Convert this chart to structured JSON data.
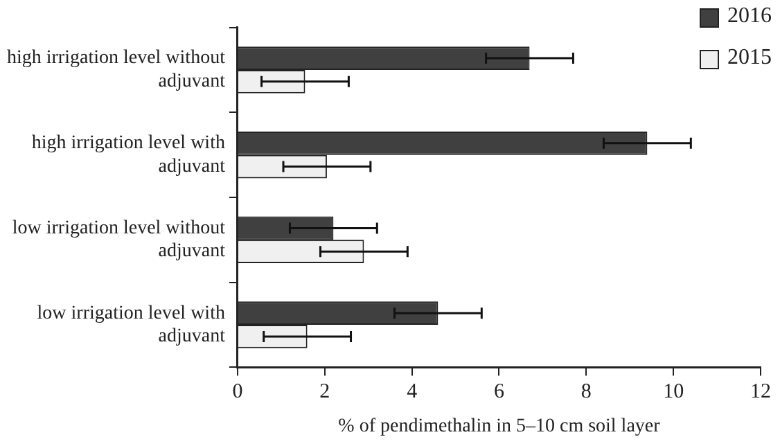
{
  "chart_data": {
    "type": "bar",
    "orientation": "horizontal",
    "xlabel": "% of pendimethalin in 5–10 cm soil layer",
    "categories": [
      "high irrigation level without adjuvant",
      "high irrigation level with adjuvant",
      "low irrigation level without adjuvant",
      "low irrigation level with adjuvant"
    ],
    "series": [
      {
        "name": "2016",
        "color": "#404040",
        "values": [
          6.7,
          9.4,
          2.2,
          4.6
        ],
        "errors": [
          1.0,
          1.0,
          1.0,
          1.0
        ]
      },
      {
        "name": "2015",
        "color": "#f0f0f0",
        "values": [
          1.55,
          2.05,
          2.9,
          1.6
        ],
        "errors": [
          1.0,
          1.0,
          1.0,
          1.0
        ]
      }
    ],
    "xlim": [
      0,
      12
    ],
    "xticks": [
      0,
      2,
      4,
      6,
      8,
      10,
      12
    ],
    "grid": false,
    "legend": "top right"
  }
}
